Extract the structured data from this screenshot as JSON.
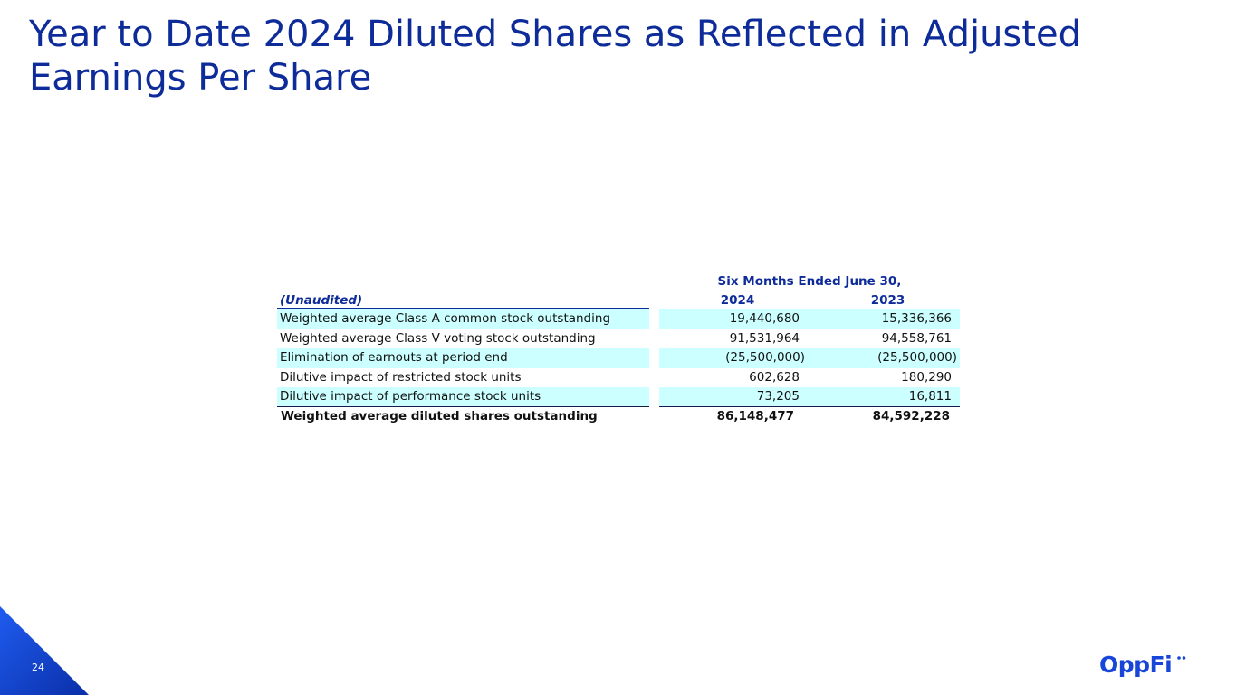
{
  "slide": {
    "title": "Year to Date 2024 Diluted Shares as Reflected in Adjusted Earnings Per Share",
    "page_number": "24",
    "logo_text": "OppFi",
    "accent_color": "#0e2b9a",
    "row_shading_color": "#ccffff"
  },
  "table": {
    "period_header": "Six Months Ended June 30,",
    "label_header": "(Unaudited)",
    "year_headers": [
      "2024",
      "2023"
    ],
    "rows": [
      {
        "label": "Weighted average Class A common stock outstanding",
        "v2024": "19,440,680",
        "v2023": "15,336,366",
        "shaded": true
      },
      {
        "label": "Weighted average Class V voting stock outstanding",
        "v2024": "91,531,964",
        "v2023": "94,558,761",
        "shaded": false
      },
      {
        "label": "Elimination of earnouts at period end",
        "v2024": "(25,500,000)",
        "v2023": "(25,500,000)",
        "shaded": true
      },
      {
        "label": "Dilutive impact of restricted stock units",
        "v2024": "602,628",
        "v2023": "180,290",
        "shaded": false
      },
      {
        "label": "Dilutive impact of performance stock units",
        "v2024": "73,205",
        "v2023": "16,811",
        "shaded": true
      }
    ],
    "total": {
      "label": "Weighted average diluted shares outstanding",
      "v2024": "86,148,477",
      "v2023": "84,592,228"
    }
  }
}
